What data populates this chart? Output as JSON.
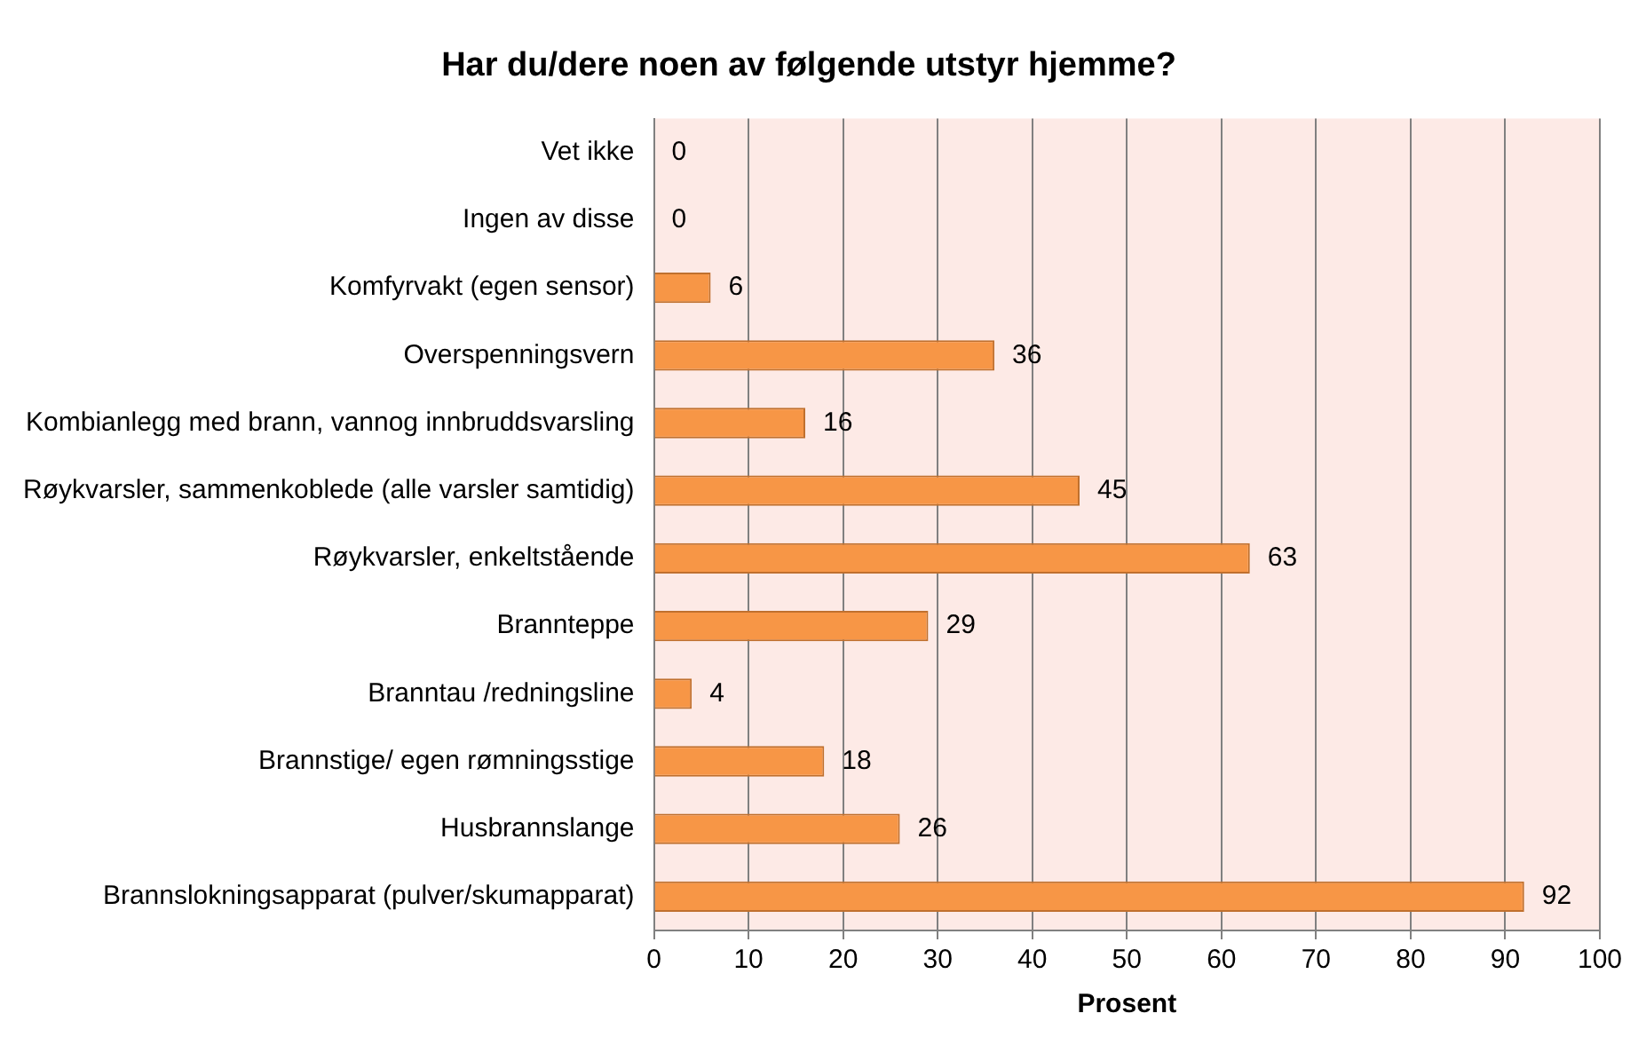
{
  "chart_data": {
    "type": "bar",
    "orientation": "horizontal",
    "title": "Har du/dere noen av følgende utstyr hjemme?",
    "xlabel": "Prosent",
    "categories": [
      "Vet ikke",
      "Ingen av disse",
      "Komfyrvakt (egen sensor)",
      "Overspenningsvern",
      "Kombianlegg med brann, vannog innbruddsvarsling",
      "Røykvarsler, sammenkoblede (alle varsler samtidig)",
      "Røykvarsler, enkeltstående",
      "Brannteppe",
      "Branntau /redningsline",
      "Brannstige/ egen rømningsstige",
      "Husbrannslange",
      "Brannslokningsapparat (pulver/skumapparat)"
    ],
    "values": [
      0,
      0,
      6,
      36,
      16,
      45,
      63,
      29,
      4,
      18,
      26,
      92
    ],
    "color": "#f79646",
    "xlim": [
      0,
      100
    ],
    "xticks": [
      0,
      10,
      20,
      30,
      40,
      50,
      60,
      70,
      80,
      90,
      100
    ],
    "grid": "x",
    "data_labels": true,
    "legend": false
  }
}
